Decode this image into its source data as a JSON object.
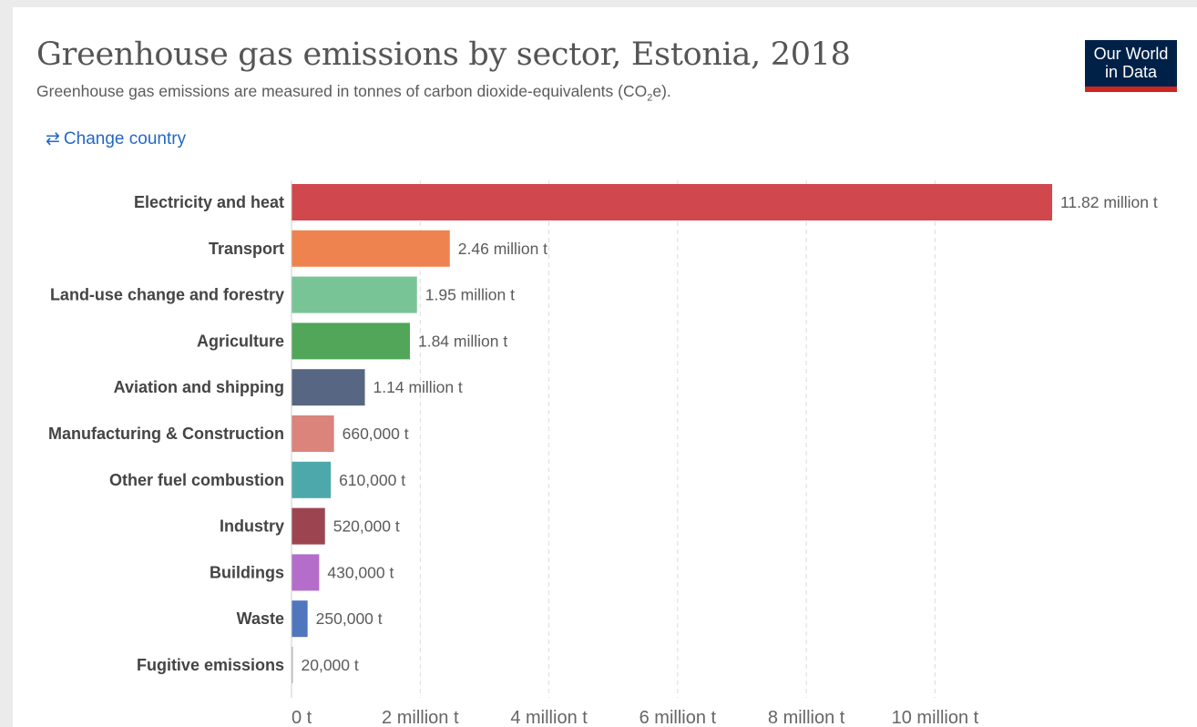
{
  "header": {
    "title": "Greenhouse gas emissions by sector, Estonia, 2018",
    "subtitle_main": "Greenhouse gas emissions are measured in tonnes of carbon dioxide-equivalents (CO",
    "subtitle_sub": "2",
    "subtitle_end": "e).",
    "logo_line1": "Our World",
    "logo_line2": "in Data",
    "change_country_icon": "⇄",
    "change_country_label": "Change country"
  },
  "colors": {
    "accent_link": "#2468c4",
    "logo_bg": "#002147",
    "logo_bar": "#ce261e"
  },
  "chart_data": {
    "type": "bar",
    "orientation": "horizontal",
    "title": "Greenhouse gas emissions by sector, Estonia, 2018",
    "subtitle": "Greenhouse gas emissions are measured in tonnes of carbon dioxide-equivalents (CO₂e).",
    "categories": [
      "Electricity and heat",
      "Transport",
      "Land-use change and forestry",
      "Agriculture",
      "Aviation and shipping",
      "Manufacturing & Construction",
      "Other fuel combustion",
      "Industry",
      "Buildings",
      "Waste",
      "Fugitive emissions"
    ],
    "values": [
      11820000,
      2460000,
      1950000,
      1840000,
      1140000,
      660000,
      610000,
      520000,
      430000,
      250000,
      20000
    ],
    "value_labels": [
      "11.82 million t",
      "2.46 million t",
      "1.95 million t",
      "1.84 million t",
      "1.14 million t",
      "660,000 t",
      "610,000 t",
      "520,000 t",
      "430,000 t",
      "250,000 t",
      "20,000 t"
    ],
    "colors": [
      "#d0474d",
      "#ef8350",
      "#79c497",
      "#51a65a",
      "#576783",
      "#da847c",
      "#4ca8ab",
      "#9c4551",
      "#b46dca",
      "#5077bd",
      "#b0b0b0"
    ],
    "xlim": [
      0,
      11820000
    ],
    "xticks": [
      0,
      2000000,
      4000000,
      6000000,
      8000000,
      10000000
    ],
    "xtick_labels": [
      "0 t",
      "2 million t",
      "4 million t",
      "6 million t",
      "8 million t",
      "10 million t"
    ],
    "grid": "vertical dashed"
  }
}
